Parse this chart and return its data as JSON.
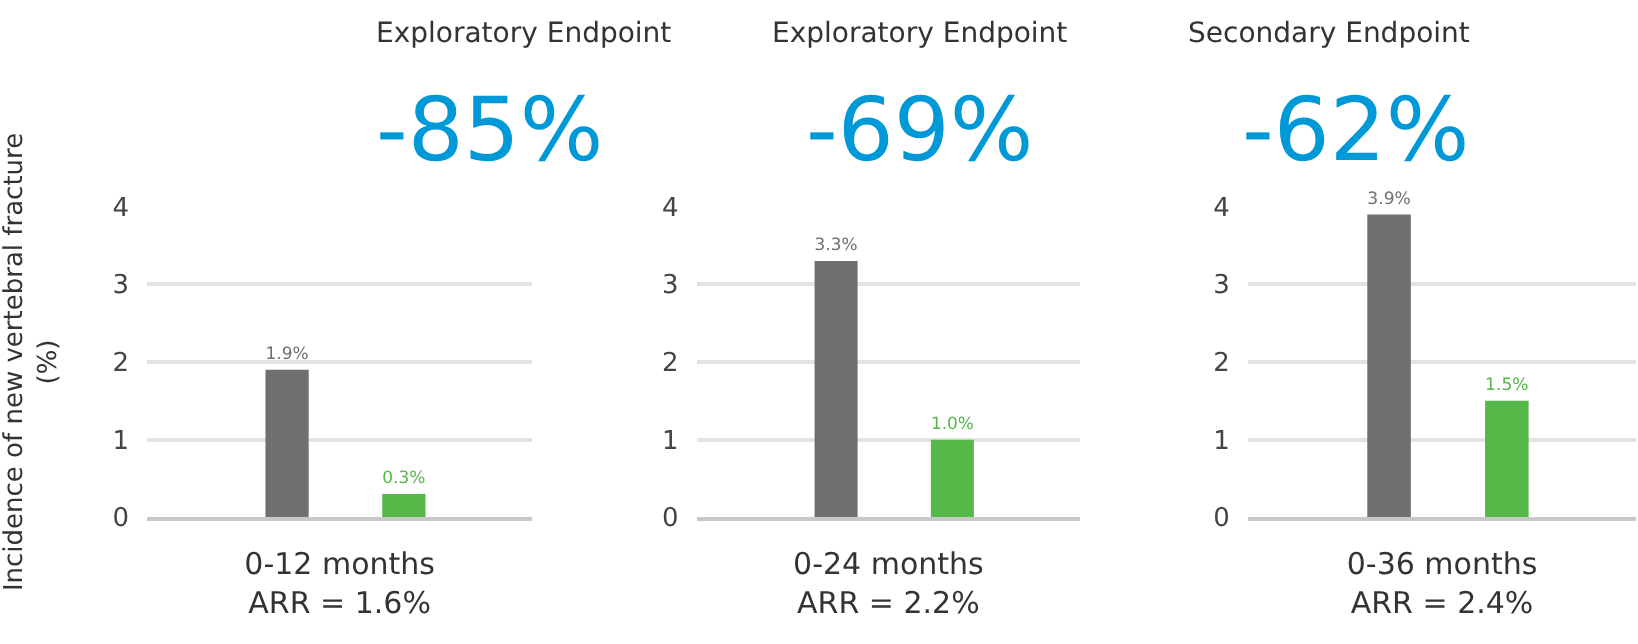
{
  "chart_data": [
    {
      "type": "bar",
      "title": "Exploratory Endpoint",
      "subtitle": "-85%",
      "ylabel": "Incidence of new vertebral fracture\n(%)",
      "xlabel": "0-12 months\nARR = 1.6%",
      "categories": [
        null,
        null
      ],
      "values": [
        1.9,
        0.3
      ],
      "colors": [
        "#707070",
        "#55b848"
      ],
      "value_labels": [
        "1.9%",
        "0.3%"
      ],
      "ylim": [
        0,
        4
      ],
      "yticks": [
        0,
        1,
        2,
        3,
        4
      ],
      "grid": "y"
    },
    {
      "type": "bar",
      "title": "Exploratory Endpoint",
      "subtitle": "-69%",
      "xlabel": "0-24 months\nARR = 2.2%",
      "categories": [
        null,
        null
      ],
      "values": [
        3.3,
        1.0
      ],
      "colors": [
        "#707070",
        "#55b848"
      ],
      "value_labels": [
        "3.3%",
        "1.0%"
      ],
      "ylim": [
        0,
        4
      ],
      "yticks": [
        0,
        1,
        2,
        3,
        4
      ],
      "grid": "y"
    },
    {
      "type": "bar",
      "title": "Secondary Endpoint",
      "subtitle": "-62%",
      "xlabel": "0-36 months\nARR = 2.4%",
      "categories": [
        null,
        null
      ],
      "values": [
        3.9,
        1.5
      ],
      "colors": [
        "#707070",
        "#55b848"
      ],
      "value_labels": [
        "3.9%",
        "1.5%"
      ],
      "ylim": [
        0,
        4
      ],
      "yticks": [
        0,
        1,
        2,
        3,
        4
      ],
      "grid": "y"
    }
  ]
}
